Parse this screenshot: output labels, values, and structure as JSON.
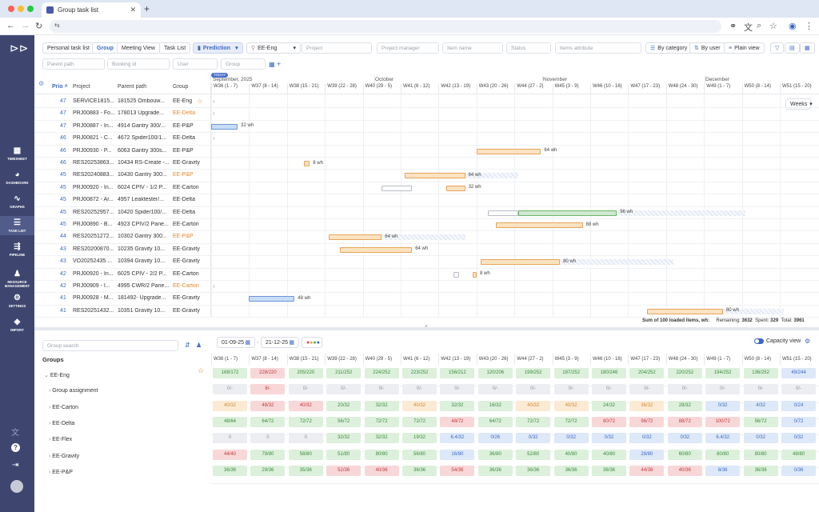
{
  "browser": {
    "tab_title": "Group task list"
  },
  "sidebar": [
    {
      "label": "TIMESHEET",
      "icon": "timesheet-icon",
      "glyph": "▦"
    },
    {
      "label": "DASHBOARD",
      "icon": "dashboard-icon",
      "glyph": "◕"
    },
    {
      "label": "GRAPHS",
      "icon": "graphs-icon",
      "glyph": "∿"
    },
    {
      "label": "TASK LIST",
      "icon": "task-list-icon",
      "glyph": "☰"
    },
    {
      "label": "PIPELINE",
      "icon": "pipeline-icon",
      "glyph": "⇶"
    },
    {
      "label": "RESOURCE MANAGEMENT",
      "icon": "resource-icon",
      "glyph": "♟"
    },
    {
      "label": "SETTINGS",
      "icon": "settings-icon",
      "glyph": "⚙"
    },
    {
      "label": "IMPORT",
      "icon": "import-icon",
      "glyph": "◈"
    }
  ],
  "toolbar": {
    "tabs": [
      "Personal task list",
      "Group",
      "Meeting View",
      "Task List"
    ],
    "prediction": "Prediction",
    "group_select": "EE-Eng",
    "filters": [
      "Project",
      "Project manager",
      "Item name",
      "Status",
      "Items attribute"
    ],
    "filters2": [
      "Parent path",
      "Booking id",
      "User",
      "Group"
    ],
    "by_category": "By category",
    "by_user": "By user",
    "plain_view": "Plain view"
  },
  "gantt": {
    "headers": {
      "prio": "Prio",
      "project": "Project",
      "parent": "Parent path",
      "group": "Group"
    },
    "today": "TODAY",
    "months": [
      "September, 2025",
      "October",
      "November",
      "December"
    ],
    "weeks": [
      "W36 (1 - 7)",
      "W37 (8 - 14)",
      "W38 (15 - 21)",
      "W39 (22 - 28)",
      "W40 (29 - 5)",
      "W41 (6 - 12)",
      "W42 (13 - 19)",
      "W43 (20 - 26)",
      "W44 (27 - 2)",
      "W45 (3 - 9)",
      "W46 (10 - 16)",
      "W47 (17 - 23)",
      "W48 (24 - 30)",
      "W49 (1 - 7)",
      "W50 (8 - 14)",
      "W51 (15 - 20)"
    ],
    "weeks_select": "Weeks",
    "rows": [
      {
        "prio": "47",
        "project": "SERVICE1815...",
        "parent": "181525 Ombouw...",
        "group": "EE-Eng",
        "orange": false
      },
      {
        "prio": "47",
        "project": "PRJ00883 - Fo...",
        "parent": "178013 Upgrade...",
        "group": "EE-Delta",
        "orange": true
      },
      {
        "prio": "47",
        "project": "PRJ00887 - In...",
        "parent": "4914 Gantry 300/...",
        "group": "EE-P&P",
        "orange": false
      },
      {
        "prio": "46",
        "project": "PRJ00821 - C...",
        "parent": "4672 Spider100/1...",
        "group": "EE-Delta",
        "orange": false
      },
      {
        "prio": "46",
        "project": "PRJ00930 - P...",
        "parent": "6063 Gantry 300s...",
        "group": "EE-P&P",
        "orange": false
      },
      {
        "prio": "46",
        "project": "RES20253863...",
        "parent": "10434 RS-Create -...",
        "group": "EE-Gravity",
        "orange": false
      },
      {
        "prio": "45",
        "project": "RES20240883...",
        "parent": "10430 Gantry 300...",
        "group": "EE-P&P",
        "orange": true
      },
      {
        "prio": "45",
        "project": "PRJ00920 - In...",
        "parent": "6024 CPIV - 1/2 P...",
        "group": "EE-Carton",
        "orange": false
      },
      {
        "prio": "45",
        "project": "PRJ00872 - Ar...",
        "parent": "4957 Leaktester/...",
        "group": "EE-Delta",
        "orange": false
      },
      {
        "prio": "45",
        "project": "RES20252957...",
        "parent": "10420 Spider100/...",
        "group": "EE-Delta",
        "orange": false
      },
      {
        "prio": "45",
        "project": "PRJ00890 - B...",
        "parent": "4923 CPIV/2 Pane...",
        "group": "EE-Carton",
        "orange": false
      },
      {
        "prio": "44",
        "project": "RES20251272...",
        "parent": "10302 Gantry 300...",
        "group": "EE-P&P",
        "orange": true
      },
      {
        "prio": "43",
        "project": "RES20200870...",
        "parent": "10235 Gravity 10...",
        "group": "EE-Gravity",
        "orange": false
      },
      {
        "prio": "43",
        "project": "VO20252435 ...",
        "parent": "10394 Gravity 10...",
        "group": "EE-Gravity",
        "orange": false
      },
      {
        "prio": "42",
        "project": "PRJ00920 - In...",
        "parent": "6025 CPIV - 2/2 P...",
        "group": "EE-Carton",
        "orange": false
      },
      {
        "prio": "42",
        "project": "PRJ00909 - I...",
        "parent": "4995 CWR/2 Pane...",
        "group": "EE-Carton",
        "orange": true
      },
      {
        "prio": "41",
        "project": "PRJ00928 - M...",
        "parent": "181492- Upgrade...",
        "group": "EE-Gravity",
        "orange": false
      },
      {
        "prio": "41",
        "project": "RES20251432...",
        "parent": "10351 Gravity 10...",
        "group": "EE-Gravity",
        "orange": false
      }
    ],
    "bar_labels": [
      "32 wh",
      "64 wh",
      "8 wh",
      "64 wh",
      "32 wh",
      "96 wh",
      "88 wh",
      "64 wh",
      "64 wh",
      "80 wh",
      "8 wh",
      "48 wh",
      "80 wh"
    ],
    "summary": {
      "text": "Sum of 100 loaded items, wh:",
      "remaining_label": "Remaining:",
      "remaining": "3632",
      "spent_label": "Spent:",
      "spent": "329",
      "total_label": "Total:",
      "total": "3961"
    }
  },
  "capacity": {
    "date_from": "01-09-25",
    "date_to": "21-12-25",
    "search_placeholder": "Group search",
    "groups_title": "Groups",
    "capacity_view": "Capacity view",
    "groups": [
      "EE-Eng",
      "Group assignment",
      "EE-Carton",
      "EE-Delta",
      "EE-Flex",
      "EE-Gravity",
      "EE-P&P"
    ],
    "rows": [
      [
        "168/172",
        "228/220",
        "205/220",
        "211/252",
        "224/252",
        "223/252",
        "156/212",
        "120/206",
        "199/252",
        "187/252",
        "180/246",
        "204/252",
        "220/252",
        "194/252",
        "136/252",
        "49/244"
      ],
      [
        "0/-",
        "8/-",
        "0/-",
        "0/-",
        "0/-",
        "0/-",
        "0/-",
        "0/-",
        "0/-",
        "0/-",
        "0/-",
        "0/-",
        "0/-",
        "0/-",
        "0/-",
        "0/-"
      ],
      [
        "40/32",
        "48/32",
        "40/32",
        "20/32",
        "32/32",
        "40/32",
        "32/32",
        "16/32",
        "40/32",
        "40/32",
        "24/32",
        "36/32",
        "28/32",
        "0/32",
        "4/32",
        "0/24"
      ],
      [
        "48/64",
        "64/72",
        "72/72",
        "56/72",
        "72/72",
        "72/72",
        "48/72",
        "64/72",
        "72/72",
        "72/72",
        "80/72",
        "96/72",
        "88/72",
        "100/72",
        "56/72",
        "0/72"
      ],
      [
        "0",
        "0",
        "0",
        "32/32",
        "32/32",
        "19/32",
        "6.4/32",
        "0/26",
        "0/32",
        "0/32",
        "0/32",
        "0/32",
        "0/32",
        "6.4/32",
        "0/32",
        "0/32"
      ],
      [
        "44/40",
        "79/80",
        "58/80",
        "51/80",
        "80/80",
        "56/80",
        "16/80",
        "36/80",
        "52/80",
        "40/80",
        "40/80",
        "28/80",
        "60/80",
        "80/80",
        "80/80",
        "49/80"
      ],
      [
        "36/36",
        "29/36",
        "35/36",
        "52/36",
        "40/36",
        "36/36",
        "54/36",
        "36/36",
        "36/36",
        "36/36",
        "36/36",
        "44/36",
        "40/36",
        "8/36",
        "36/36",
        "0/36"
      ]
    ],
    "classes": [
      [
        "g",
        "r",
        "g",
        "g",
        "g",
        "g",
        "g",
        "g",
        "g",
        "g",
        "g",
        "g",
        "g",
        "g",
        "g",
        "b"
      ],
      [
        "n",
        "r",
        "n",
        "n",
        "n",
        "n",
        "n",
        "n",
        "n",
        "n",
        "n",
        "n",
        "n",
        "n",
        "n",
        "n"
      ],
      [
        "o",
        "r",
        "r",
        "g",
        "g",
        "o",
        "g",
        "g",
        "o",
        "o",
        "g",
        "o",
        "g",
        "b",
        "b",
        "b"
      ],
      [
        "g",
        "g",
        "g",
        "g",
        "g",
        "g",
        "r",
        "g",
        "g",
        "g",
        "r",
        "r",
        "r",
        "r",
        "g",
        "b"
      ],
      [
        "n",
        "n",
        "n",
        "g",
        "g",
        "g",
        "b",
        "b",
        "b",
        "b",
        "b",
        "b",
        "b",
        "b",
        "b",
        "b"
      ],
      [
        "r",
        "g",
        "g",
        "g",
        "g",
        "g",
        "b",
        "g",
        "g",
        "g",
        "g",
        "b",
        "g",
        "g",
        "g",
        "g"
      ],
      [
        "g",
        "g",
        "g",
        "r",
        "r",
        "g",
        "r",
        "g",
        "g",
        "g",
        "g",
        "r",
        "r",
        "b",
        "g",
        "b"
      ]
    ]
  },
  "colors": {
    "sidebar": "#3e4670",
    "accent": "#3d6ac4",
    "orange": "#e08a2c",
    "bar_orange": "#fbe3c2",
    "bar_green": "#cfe8cf",
    "bar_blue": "#c9dcf7"
  }
}
